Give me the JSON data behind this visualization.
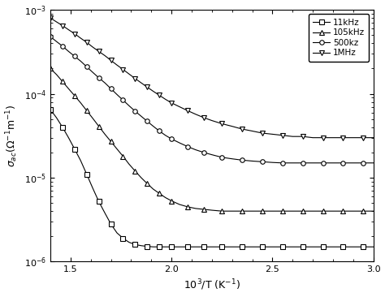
{
  "title": "",
  "xlabel": "10$^3$/T (K$^{-1}$)",
  "ylabel": "$\\sigma_{ac}$($\\Omega^{-1}$m$^{-1}$)",
  "xmin": 1.4,
  "xmax": 3.0,
  "ymin": 1e-06,
  "ymax": 0.001,
  "legend_labels": [
    "11kHz",
    "105kHz",
    "500kz",
    "1MHz"
  ],
  "legend_markers": [
    "s",
    "^",
    "o",
    "v"
  ],
  "series": {
    "11kHz": {
      "x": [
        1.4,
        1.43,
        1.46,
        1.49,
        1.52,
        1.55,
        1.58,
        1.61,
        1.64,
        1.67,
        1.7,
        1.73,
        1.76,
        1.79,
        1.82,
        1.85,
        1.88,
        1.91,
        1.94,
        1.97,
        2.0,
        2.04,
        2.08,
        2.12,
        2.16,
        2.2,
        2.25,
        2.3,
        2.35,
        2.4,
        2.45,
        2.5,
        2.55,
        2.6,
        2.65,
        2.7,
        2.75,
        2.8,
        2.85,
        2.9,
        2.95,
        3.0
      ],
      "y": [
        6.5e-05,
        5.2e-05,
        4e-05,
        3e-05,
        2.2e-05,
        1.6e-05,
        1.1e-05,
        7.5e-06,
        5.2e-06,
        3.8e-06,
        2.8e-06,
        2.2e-06,
        1.9e-06,
        1.7e-06,
        1.6e-06,
        1.55e-06,
        1.52e-06,
        1.5e-06,
        1.5e-06,
        1.5e-06,
        1.5e-06,
        1.5e-06,
        1.5e-06,
        1.5e-06,
        1.5e-06,
        1.5e-06,
        1.5e-06,
        1.5e-06,
        1.5e-06,
        1.5e-06,
        1.5e-06,
        1.5e-06,
        1.5e-06,
        1.5e-06,
        1.5e-06,
        1.5e-06,
        1.5e-06,
        1.5e-06,
        1.5e-06,
        1.5e-06,
        1.5e-06,
        1.5e-06
      ]
    },
    "105kHz": {
      "x": [
        1.4,
        1.43,
        1.46,
        1.49,
        1.52,
        1.55,
        1.58,
        1.61,
        1.64,
        1.67,
        1.7,
        1.73,
        1.76,
        1.79,
        1.82,
        1.85,
        1.88,
        1.91,
        1.94,
        1.97,
        2.0,
        2.04,
        2.08,
        2.12,
        2.16,
        2.2,
        2.25,
        2.3,
        2.35,
        2.4,
        2.45,
        2.5,
        2.55,
        2.6,
        2.65,
        2.7,
        2.75,
        2.8,
        2.85,
        2.9,
        2.95,
        3.0
      ],
      "y": [
        0.0002,
        0.00017,
        0.00014,
        0.000115,
        9.5e-05,
        7.8e-05,
        6.3e-05,
        5.1e-05,
        4.1e-05,
        3.3e-05,
        2.7e-05,
        2.2e-05,
        1.8e-05,
        1.45e-05,
        1.2e-05,
        1e-05,
        8.5e-06,
        7.3e-06,
        6.5e-06,
        5.8e-06,
        5.3e-06,
        4.8e-06,
        4.5e-06,
        4.3e-06,
        4.2e-06,
        4.1e-06,
        4e-06,
        4e-06,
        4e-06,
        4e-06,
        4e-06,
        4e-06,
        4e-06,
        4e-06,
        4e-06,
        4e-06,
        4e-06,
        4e-06,
        4e-06,
        4e-06,
        4e-06,
        4e-06
      ]
    },
    "500kHz": {
      "x": [
        1.4,
        1.43,
        1.46,
        1.49,
        1.52,
        1.55,
        1.58,
        1.61,
        1.64,
        1.67,
        1.7,
        1.73,
        1.76,
        1.79,
        1.82,
        1.85,
        1.88,
        1.91,
        1.94,
        1.97,
        2.0,
        2.04,
        2.08,
        2.12,
        2.16,
        2.2,
        2.25,
        2.3,
        2.35,
        2.4,
        2.45,
        2.5,
        2.55,
        2.6,
        2.65,
        2.7,
        2.75,
        2.8,
        2.85,
        2.9,
        2.95,
        3.0
      ],
      "y": [
        0.00048,
        0.00042,
        0.00037,
        0.00032,
        0.00028,
        0.000245,
        0.00021,
        0.00018,
        0.000155,
        0.000135,
        0.000115,
        9.8e-05,
        8.4e-05,
        7.2e-05,
        6.2e-05,
        5.4e-05,
        4.7e-05,
        4.1e-05,
        3.6e-05,
        3.2e-05,
        2.9e-05,
        2.6e-05,
        2.35e-05,
        2.15e-05,
        2e-05,
        1.88e-05,
        1.75e-05,
        1.68e-05,
        1.62e-05,
        1.58e-05,
        1.55e-05,
        1.52e-05,
        1.5e-05,
        1.5e-05,
        1.5e-05,
        1.5e-05,
        1.5e-05,
        1.5e-05,
        1.5e-05,
        1.5e-05,
        1.5e-05,
        1.5e-05
      ]
    },
    "1MHz": {
      "x": [
        1.4,
        1.43,
        1.46,
        1.49,
        1.52,
        1.55,
        1.58,
        1.61,
        1.64,
        1.67,
        1.7,
        1.73,
        1.76,
        1.79,
        1.82,
        1.85,
        1.88,
        1.91,
        1.94,
        1.97,
        2.0,
        2.04,
        2.08,
        2.12,
        2.16,
        2.2,
        2.25,
        2.3,
        2.35,
        2.4,
        2.45,
        2.5,
        2.55,
        2.6,
        2.65,
        2.7,
        2.75,
        2.8,
        2.85,
        2.9,
        2.95,
        3.0
      ],
      "y": [
        0.0008,
        0.00072,
        0.00065,
        0.00058,
        0.00052,
        0.00046,
        0.00041,
        0.00036,
        0.00032,
        0.000285,
        0.00025,
        0.00022,
        0.000195,
        0.000172,
        0.000152,
        0.000135,
        0.00012,
        0.000107,
        9.6e-05,
        8.6e-05,
        7.8e-05,
        7e-05,
        6.3e-05,
        5.7e-05,
        5.2e-05,
        4.8e-05,
        4.4e-05,
        4.1e-05,
        3.8e-05,
        3.6e-05,
        3.4e-05,
        3.3e-05,
        3.2e-05,
        3.1e-05,
        3.1e-05,
        3e-05,
        3e-05,
        3e-05,
        3e-05,
        3e-05,
        3e-05,
        3e-05
      ]
    }
  },
  "markersize": 4,
  "linewidth": 0.8,
  "markevery": 2
}
